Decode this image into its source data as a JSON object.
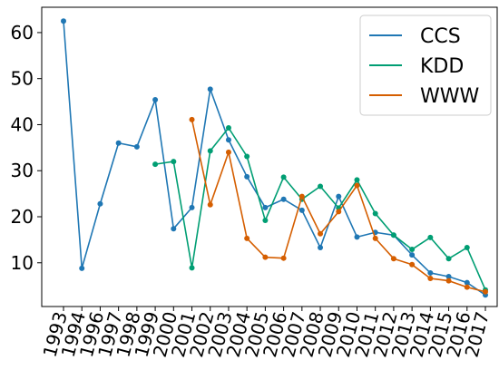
{
  "chart_data": {
    "type": "line",
    "title": "",
    "xlabel": "",
    "ylabel": "",
    "categories": [
      "1993",
      "1994",
      "1996",
      "1997",
      "1998",
      "1999",
      "2000",
      "2001",
      "2002",
      "2003",
      "2004",
      "2005",
      "2006",
      "2007",
      "2008",
      "2009",
      "2010",
      "2011",
      "2012",
      "2013",
      "2014",
      "2015",
      "2016",
      "2017"
    ],
    "yticks": [
      10,
      20,
      30,
      40,
      50,
      60
    ],
    "ylim": [
      0.5,
      65.5
    ],
    "grid": false,
    "legend_position": "top-right",
    "series": [
      {
        "name": "CCS",
        "color": "#1f77b4",
        "values": [
          62.5,
          8.8,
          22.8,
          36.0,
          35.2,
          45.4,
          17.4,
          22.0,
          47.7,
          36.7,
          28.7,
          22.0,
          23.8,
          21.4,
          13.3,
          24.4,
          15.6,
          16.6,
          16.0,
          11.7,
          7.8,
          7.0,
          5.7,
          3.0
        ]
      },
      {
        "name": "KDD",
        "color": "#009e73",
        "values": [
          null,
          null,
          null,
          null,
          null,
          31.4,
          32.0,
          8.9,
          34.3,
          39.3,
          33.1,
          19.2,
          28.6,
          23.8,
          26.6,
          21.9,
          28.0,
          20.7,
          16.0,
          12.9,
          15.5,
          10.9,
          13.3,
          4.1
        ]
      },
      {
        "name": "WWW",
        "color": "#d55e00",
        "values": [
          null,
          null,
          null,
          null,
          null,
          null,
          null,
          41.1,
          22.6,
          34.0,
          15.3,
          11.2,
          11.0,
          24.4,
          16.3,
          21.1,
          26.8,
          15.3,
          10.9,
          9.6,
          6.6,
          6.1,
          4.7,
          3.7
        ]
      }
    ]
  }
}
